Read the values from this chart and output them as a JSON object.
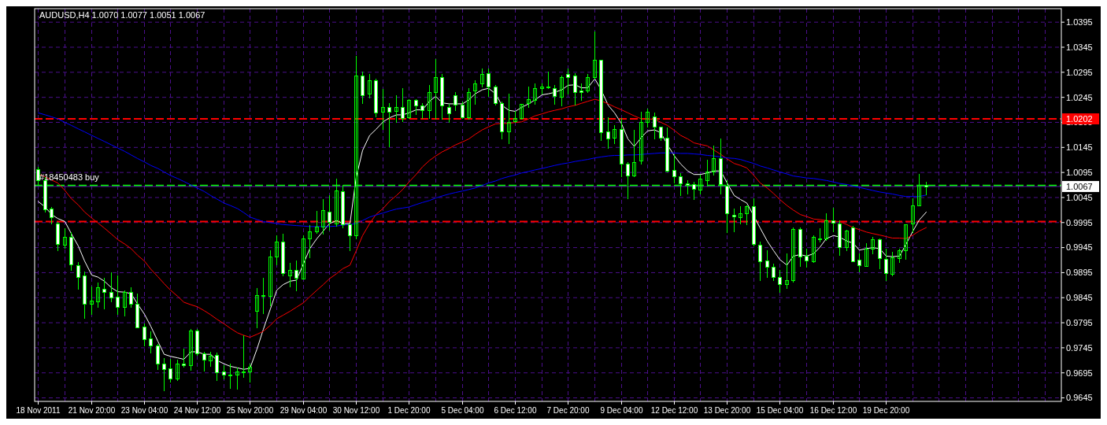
{
  "chart_data": {
    "type": "candlestick",
    "title": "AUDUSD,H4 1.0070 1.0077 1.0051 1.0067",
    "color": "#00ff00",
    "categories": [
      "18 Nov 2011",
      null,
      null,
      null,
      null,
      null,
      null,
      null,
      "21 Nov 20:00",
      null,
      null,
      null,
      null,
      null,
      null,
      null,
      "23 Nov 04:00",
      null,
      null,
      null,
      null,
      null,
      null,
      null,
      "24 Nov 12:00",
      null,
      null,
      null,
      null,
      null,
      null,
      null,
      "25 Nov 20:00",
      null,
      null,
      null,
      null,
      null,
      null,
      null,
      "29 Nov 04:00",
      null,
      null,
      null,
      null,
      null,
      null,
      null,
      "30 Nov 12:00",
      null,
      null,
      null,
      null,
      null,
      null,
      null,
      "1 Dec 20:00",
      null,
      null,
      null,
      null,
      null,
      null,
      null,
      "5 Dec 04:00",
      null,
      null,
      null,
      null,
      null,
      null,
      null,
      "6 Dec 12:00",
      null,
      null,
      null,
      null,
      null,
      null,
      null,
      "7 Dec 20:00",
      null,
      null,
      null,
      null,
      null,
      null,
      null,
      "9 Dec 04:00",
      null,
      null,
      null,
      null,
      null,
      null,
      null,
      "12 Dec 12:00",
      null,
      null,
      null,
      null,
      null,
      null,
      null,
      "13 Dec 20:00",
      null,
      null,
      null,
      null,
      null,
      null,
      null,
      "15 Dec 04:00",
      null,
      null,
      null,
      null,
      null,
      null,
      null,
      "16 Dec 12:00",
      null,
      null,
      null,
      null,
      null,
      null,
      null,
      "19 Dec 20:00",
      null,
      null,
      null,
      null,
      null,
      null
    ],
    "ohlc": [
      [
        1.0101,
        1.0106,
        1.0071,
        1.008
      ],
      [
        1.008,
        1.0086,
        1.0016,
        1.0022
      ],
      [
        1.0023,
        1.0026,
        0.9993,
        1.0006
      ],
      [
        0.9993,
        0.9996,
        0.9939,
        0.9952
      ],
      [
        0.9951,
        0.9984,
        0.9945,
        0.9966
      ],
      [
        0.9967,
        0.9976,
        0.99,
        0.9912
      ],
      [
        0.991,
        0.9916,
        0.9863,
        0.9887
      ],
      [
        0.9889,
        0.9897,
        0.9805,
        0.9833
      ],
      [
        0.9833,
        0.9868,
        0.9812,
        0.9839
      ],
      [
        0.9838,
        0.9875,
        0.9826,
        0.9866
      ],
      [
        0.9863,
        0.9884,
        0.9823,
        0.9857
      ],
      [
        0.9857,
        0.9895,
        0.9838,
        0.9845
      ],
      [
        0.9847,
        0.9889,
        0.9812,
        0.9827
      ],
      [
        0.9826,
        0.9859,
        0.9809,
        0.9857
      ],
      [
        0.9857,
        0.9866,
        0.9827,
        0.9833
      ],
      [
        0.9833,
        0.9853,
        0.9785,
        0.9785
      ],
      [
        0.9787,
        0.9793,
        0.975,
        0.9762
      ],
      [
        0.9764,
        0.9778,
        0.9735,
        0.9749
      ],
      [
        0.9749,
        0.9753,
        0.9702,
        0.9713
      ],
      [
        0.9714,
        0.9725,
        0.966,
        0.9702
      ],
      [
        0.9704,
        0.9723,
        0.9677,
        0.9684
      ],
      [
        0.9683,
        0.9722,
        0.968,
        0.9714
      ],
      [
        0.9714,
        0.9744,
        0.9707,
        0.971
      ],
      [
        0.971,
        0.9782,
        0.9701,
        0.9779
      ],
      [
        0.9779,
        0.9782,
        0.9731,
        0.9734
      ],
      [
        0.9734,
        0.9737,
        0.9699,
        0.9722
      ],
      [
        0.972,
        0.9737,
        0.9708,
        0.9729
      ],
      [
        0.9731,
        0.9735,
        0.968,
        0.9696
      ],
      [
        0.9698,
        0.971,
        0.9683,
        0.9692
      ],
      [
        0.9692,
        0.9714,
        0.9665,
        0.9692
      ],
      [
        0.9692,
        0.9705,
        0.9663,
        0.9698
      ],
      [
        0.9698,
        0.977,
        0.9687,
        0.9698
      ],
      [
        0.9698,
        0.9714,
        0.9678,
        0.9707
      ],
      [
        0.9818,
        0.9865,
        0.9785,
        0.985
      ],
      [
        0.985,
        0.9884,
        0.9814,
        0.985
      ],
      [
        0.9848,
        0.9939,
        0.9829,
        0.9927
      ],
      [
        0.9927,
        0.997,
        0.9912,
        0.9957
      ],
      [
        0.9957,
        0.9973,
        0.9889,
        0.9894
      ],
      [
        0.989,
        0.9915,
        0.9868,
        0.9901
      ],
      [
        0.9901,
        0.9919,
        0.9859,
        0.9884
      ],
      [
        0.9883,
        0.997,
        0.9883,
        0.9964
      ],
      [
        0.9964,
        0.999,
        0.9925,
        0.9978
      ],
      [
        0.9978,
        1.0019,
        0.9975,
        0.9987
      ],
      [
        0.9987,
        1.0041,
        0.9973,
        1.002
      ],
      [
        1.0017,
        1.0049,
        0.9981,
        0.9996
      ],
      [
        0.9993,
        1.0083,
        0.9988,
        1.0059
      ],
      [
        1.0058,
        1.007,
        0.9985,
        0.9991
      ],
      [
        0.9991,
        0.9993,
        0.9939,
        0.9969
      ],
      [
        0.9969,
        1.0327,
        0.9963,
        1.0288
      ],
      [
        1.0288,
        1.0297,
        1.0234,
        1.0249
      ],
      [
        1.0252,
        1.0291,
        1.0244,
        1.0279
      ],
      [
        1.0279,
        1.0282,
        1.0207,
        1.0214
      ],
      [
        1.0216,
        1.0261,
        1.0181,
        1.0225
      ],
      [
        1.0225,
        1.0234,
        1.0147,
        1.0216
      ],
      [
        1.0217,
        1.0249,
        1.0195,
        1.0225
      ],
      [
        1.0225,
        1.0263,
        1.0198,
        1.0204
      ],
      [
        1.0205,
        1.0241,
        1.0204,
        1.024
      ],
      [
        1.024,
        1.0241,
        1.0211,
        1.0228
      ],
      [
        1.0228,
        1.0234,
        1.0204,
        1.0219
      ],
      [
        1.0219,
        1.0269,
        1.0204,
        1.0256
      ],
      [
        1.0256,
        1.0321,
        1.0202,
        1.0285
      ],
      [
        1.0285,
        1.0291,
        1.0202,
        1.0228
      ],
      [
        1.0225,
        1.0232,
        1.0195,
        1.0213
      ],
      [
        1.0249,
        1.0255,
        1.0219,
        1.0231
      ],
      [
        1.0231,
        1.0237,
        1.0204,
        1.0205
      ],
      [
        1.0205,
        1.0263,
        1.0202,
        1.0256
      ],
      [
        1.0258,
        1.0279,
        1.0232,
        1.0272
      ],
      [
        1.0273,
        1.0302,
        1.0266,
        1.0291
      ],
      [
        1.0293,
        1.0302,
        1.0247,
        1.0266
      ],
      [
        1.0266,
        1.027,
        1.0231,
        1.0234
      ],
      [
        1.0234,
        1.0237,
        1.0162,
        1.0177
      ],
      [
        1.0177,
        1.0252,
        1.0154,
        1.0196
      ],
      [
        1.0198,
        1.0217,
        1.0195,
        1.0204
      ],
      [
        1.0204,
        1.0232,
        1.0202,
        1.0232
      ],
      [
        1.0234,
        1.0266,
        1.0226,
        1.0241
      ],
      [
        1.024,
        1.0272,
        1.0232,
        1.0263
      ],
      [
        1.0264,
        1.0272,
        1.0252,
        1.0267
      ],
      [
        1.0266,
        1.0297,
        1.0264,
        1.0266
      ],
      [
        1.0264,
        1.0269,
        1.0232,
        1.0247
      ],
      [
        1.0246,
        1.0288,
        1.0229,
        1.0285
      ],
      [
        1.0291,
        1.0303,
        1.0252,
        1.0285
      ],
      [
        1.0288,
        1.0293,
        1.0231,
        1.0255
      ],
      [
        1.0258,
        1.0273,
        1.024,
        1.0255
      ],
      [
        1.0258,
        1.0291,
        1.0256,
        1.0285
      ],
      [
        1.0285,
        1.0377,
        1.0282,
        1.032
      ],
      [
        1.032,
        1.032,
        1.016,
        1.0175
      ],
      [
        1.0177,
        1.0205,
        1.0144,
        1.0163
      ],
      [
        1.0165,
        1.0189,
        1.0154,
        1.0181
      ],
      [
        1.0181,
        1.0204,
        1.0088,
        1.0112
      ],
      [
        1.0113,
        1.0116,
        1.0044,
        1.0089
      ],
      [
        1.0089,
        1.018,
        1.0088,
        1.0115
      ],
      [
        1.0118,
        1.0216,
        1.0112,
        1.0195
      ],
      [
        1.0195,
        1.0222,
        1.0186,
        1.0216
      ],
      [
        1.0207,
        1.0214,
        1.0162,
        1.0186
      ],
      [
        1.0186,
        1.0186,
        1.0159,
        1.0165
      ],
      [
        1.0165,
        1.0184,
        1.0097,
        1.0098
      ],
      [
        1.01,
        1.0131,
        1.0074,
        1.0088
      ],
      [
        1.0088,
        1.0094,
        1.0049,
        1.0073
      ],
      [
        1.0073,
        1.0079,
        1.0052,
        1.007
      ],
      [
        1.0071,
        1.0076,
        1.0041,
        1.0062
      ],
      [
        1.0061,
        1.0091,
        1.0053,
        1.0082
      ],
      [
        1.008,
        1.0121,
        1.0068,
        1.0097
      ],
      [
        1.0097,
        1.0148,
        1.0091,
        1.0124
      ],
      [
        1.0124,
        1.0162,
        1.0052,
        1.0071
      ],
      [
        1.0068,
        1.0079,
        0.9976,
        1.0014
      ],
      [
        1.0011,
        1.0023,
        0.9978,
        1.0008
      ],
      [
        1.0006,
        1.0028,
        0.9993,
        1.0014
      ],
      [
        1.0013,
        1.0029,
        0.9991,
        1.0028
      ],
      [
        1.0028,
        1.0044,
        0.9949,
        0.9952
      ],
      [
        0.9951,
        0.9957,
        0.988,
        0.9918
      ],
      [
        0.9919,
        0.9939,
        0.9886,
        0.9906
      ],
      [
        0.9907,
        0.9913,
        0.988,
        0.9887
      ],
      [
        0.9887,
        0.9901,
        0.9857,
        0.9872
      ],
      [
        0.9872,
        0.9933,
        0.9865,
        0.988
      ],
      [
        0.988,
        0.9985,
        0.9877,
        0.9982
      ],
      [
        0.9982,
        0.9985,
        0.9909,
        0.9927
      ],
      [
        0.9928,
        0.9943,
        0.9907,
        0.9919
      ],
      [
        0.9918,
        0.997,
        0.9916,
        0.9966
      ],
      [
        0.9964,
        0.9984,
        0.9957,
        0.9964
      ],
      [
        0.9963,
        1.0014,
        0.996,
        1.0
      ],
      [
        1.0,
        1.0025,
        0.9978,
        0.9994
      ],
      [
        0.9993,
        0.9999,
        0.9931,
        0.9946
      ],
      [
        0.9946,
        0.9981,
        0.994,
        0.9979
      ],
      [
        0.9985,
        0.9988,
        0.9918,
        0.9918
      ],
      [
        0.9921,
        0.9934,
        0.9897,
        0.991
      ],
      [
        0.9909,
        0.9954,
        0.9909,
        0.9943
      ],
      [
        0.9943,
        0.9967,
        0.9933,
        0.9961
      ],
      [
        0.9961,
        0.9963,
        0.9903,
        0.9924
      ],
      [
        0.9922,
        0.9943,
        0.988,
        0.9894
      ],
      [
        0.9892,
        0.9937,
        0.989,
        0.9925
      ],
      [
        0.9924,
        0.9943,
        0.9916,
        0.994
      ],
      [
        0.994,
        0.9991,
        0.9922,
        0.9991
      ],
      [
        0.9993,
        1.0043,
        0.9976,
        1.0029
      ],
      [
        1.0029,
        1.0092,
        1.0029,
        1.007
      ],
      [
        1.007,
        1.0077,
        1.0051,
        1.0067
      ]
    ],
    "series": [
      {
        "type": "line",
        "color": "#ffffff",
        "values": [
          1.0037,
          1.0026,
          1.0011,
          1.0003,
          0.9997,
          0.9973,
          0.9948,
          0.9918,
          0.989,
          0.9886,
          0.9878,
          0.9865,
          0.9857,
          0.9856,
          0.9853,
          0.9833,
          0.9812,
          0.9788,
          0.9758,
          0.9732,
          0.9728,
          0.9725,
          0.9722,
          0.9737,
          0.9737,
          0.9732,
          0.9732,
          0.972,
          0.9713,
          0.9708,
          0.9705,
          0.9702,
          0.9704,
          0.9743,
          0.9782,
          0.9823,
          0.986,
          0.9871,
          0.9878,
          0.988,
          0.9913,
          0.9943,
          0.9963,
          0.9978,
          0.9993,
          0.9999,
          0.9993,
          0.9993,
          1.0086,
          1.0139,
          1.0169,
          1.0181,
          1.0196,
          1.0204,
          1.021,
          1.021,
          1.0214,
          1.022,
          1.022,
          1.0237,
          1.0247,
          1.0234,
          1.0232,
          1.0232,
          1.0232,
          1.024,
          1.0252,
          1.026,
          1.0263,
          1.0252,
          1.0229,
          1.0219,
          1.0217,
          1.0225,
          1.0232,
          1.024,
          1.025,
          1.0252,
          1.0255,
          1.026,
          1.0269,
          1.027,
          1.0264,
          1.0264,
          1.0282,
          1.026,
          1.0229,
          1.0214,
          1.0192,
          1.0162,
          1.0147,
          1.0165,
          1.0178,
          1.018,
          1.0174,
          1.0151,
          1.0128,
          1.0112,
          1.0098,
          1.0091,
          1.0091,
          1.0094,
          1.0098,
          1.0098,
          1.0074,
          1.0049,
          1.0041,
          1.0034,
          1.0008,
          0.9984,
          0.9958,
          0.9939,
          0.9921,
          0.991,
          0.9928,
          0.9931,
          0.9928,
          0.9933,
          0.9946,
          0.9963,
          0.9969,
          0.9966,
          0.9958,
          0.9954,
          0.994,
          0.9943,
          0.9945,
          0.9943,
          0.9928,
          0.9927,
          0.9928,
          0.9951,
          0.9978,
          1.0,
          1.0016
        ]
      },
      {
        "type": "line",
        "color": "#ff0000",
        "values": [
          1.0092,
          1.0086,
          1.008,
          1.0074,
          1.0059,
          1.0043,
          1.003,
          1.0016,
          1.0004,
          0.9994,
          0.9984,
          0.9972,
          0.9961,
          0.9952,
          0.9943,
          0.993,
          0.9918,
          0.9902,
          0.9887,
          0.9873,
          0.986,
          0.9848,
          0.9836,
          0.9831,
          0.9827,
          0.9819,
          0.9811,
          0.9802,
          0.9793,
          0.9784,
          0.9775,
          0.977,
          0.9766,
          0.9772,
          0.9778,
          0.979,
          0.9803,
          0.981,
          0.9818,
          0.9826,
          0.9835,
          0.9847,
          0.986,
          0.9871,
          0.9883,
          0.9893,
          0.9903,
          0.991,
          0.9939,
          0.9969,
          0.9993,
          1.0011,
          1.0023,
          1.0037,
          1.0049,
          1.0061,
          1.0076,
          1.0091,
          1.0106,
          1.0119,
          1.0128,
          1.0136,
          1.0143,
          1.015,
          1.0156,
          1.0162,
          1.0171,
          1.018,
          1.0186,
          1.0192,
          1.0193,
          1.0193,
          1.0195,
          1.0196,
          1.0202,
          1.0208,
          1.0212,
          1.0216,
          1.0219,
          1.0222,
          1.0226,
          1.0229,
          1.0233,
          1.0237,
          1.0241,
          1.0238,
          1.0232,
          1.0226,
          1.022,
          1.0214,
          1.0208,
          1.0202,
          1.0202,
          1.0201,
          1.0195,
          1.0189,
          1.0179,
          1.0169,
          1.0162,
          1.0154,
          1.0151,
          1.0148,
          1.014,
          1.0131,
          1.0122,
          1.0113,
          1.0109,
          1.0104,
          1.0089,
          1.0074,
          1.0064,
          1.0053,
          1.0041,
          1.0029,
          1.002,
          1.0011,
          1.0007,
          1.0002,
          1.0001,
          0.9999,
          0.9998,
          0.9997,
          0.9991,
          0.9985,
          0.9981,
          0.9976,
          0.9973,
          0.997,
          0.9967,
          0.9964,
          0.9964,
          0.9963,
          0.997,
          0.9978,
          0.9985
        ]
      },
      {
        "type": "line",
        "color": "#0000ff",
        "values": [
          1.0214,
          1.021,
          1.0206,
          1.0202,
          1.0195,
          1.0189,
          1.0182,
          1.0176,
          1.0169,
          1.0163,
          1.0157,
          1.015,
          1.0144,
          1.0137,
          1.013,
          1.0123,
          1.0116,
          1.0109,
          1.0103,
          1.0096,
          1.0089,
          1.0083,
          1.0077,
          1.007,
          1.0064,
          1.0057,
          1.0049,
          1.0042,
          1.0034,
          1.0029,
          1.0023,
          1.0015,
          1.0006,
          1.0001,
          0.9997,
          0.9995,
          0.9993,
          0.9991,
          0.999,
          0.9989,
          0.9988,
          0.9987,
          0.9987,
          0.9987,
          0.9987,
          0.9988,
          0.999,
          0.9991,
          0.9993,
          0.9999,
          1.0006,
          1.001,
          1.0014,
          1.0018,
          1.0022,
          1.0024,
          1.0026,
          1.0031,
          1.0035,
          1.0039,
          1.0044,
          1.0048,
          1.0052,
          1.0055,
          1.0058,
          1.0061,
          1.0064,
          1.0069,
          1.0074,
          1.0078,
          1.0083,
          1.0087,
          1.009,
          1.0094,
          1.0097,
          1.01,
          1.0103,
          1.0106,
          1.0109,
          1.0112,
          1.0114,
          1.0117,
          1.0119,
          1.0121,
          1.0124,
          1.0126,
          1.0128,
          1.0129,
          1.0129,
          1.013,
          1.013,
          1.0131,
          1.0132,
          1.0133,
          1.0134,
          1.0134,
          1.0134,
          1.0133,
          1.0133,
          1.0132,
          1.0131,
          1.0129,
          1.0128,
          1.0126,
          1.0124,
          1.0123,
          1.0121,
          1.0117,
          1.0113,
          1.0108,
          1.0104,
          1.01,
          1.0096,
          1.0092,
          1.0088,
          1.0086,
          1.0084,
          1.0083,
          1.0081,
          1.0079,
          1.0076,
          1.0073,
          1.0071,
          1.0068,
          1.0065,
          1.0062,
          1.0059,
          1.0056,
          1.0054,
          1.0052,
          1.0049,
          1.0047,
          1.0047,
          1.0047,
          1.005
        ]
      }
    ],
    "ylim": [
      0.9638,
      1.0422
    ],
    "yticks": [
      0.9645,
      0.9695,
      0.9745,
      0.9795,
      0.9845,
      0.9895,
      0.9945,
      0.9995,
      1.0045,
      1.0095,
      1.0145,
      1.0195,
      1.0245,
      1.0295,
      1.0345,
      1.0395
    ],
    "grid": true,
    "ref_lines": [
      {
        "axis": "y",
        "value": 1.0202,
        "label": "1.0202",
        "color": "#ff0000",
        "line_style": "dashed"
      },
      {
        "axis": "y",
        "value": 1.0069,
        "label": "#18450483 buy",
        "color": "#00ff00",
        "line_style": "dashed"
      },
      {
        "axis": "y",
        "value": 0.9997,
        "color": "#ff0000",
        "line_style": "dashed"
      },
      {
        "axis": "y",
        "value": 1.0067,
        "label": "1.0067",
        "color": "#5a10a8",
        "line_style": "solid"
      }
    ]
  }
}
